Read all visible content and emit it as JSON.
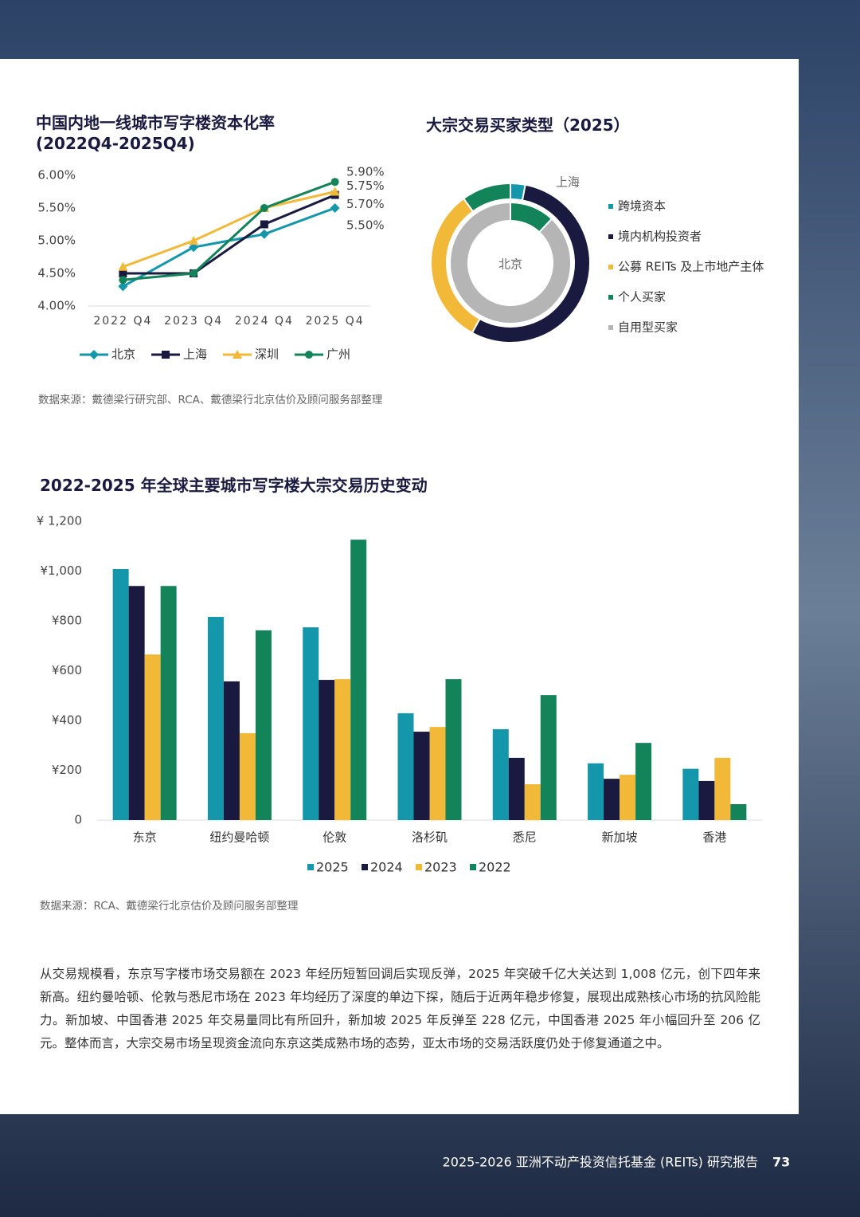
{
  "chart_data": [
    {
      "type": "line",
      "title": "中国内地一线城市写字楼资本化率\n(2022Q4-2025Q4)",
      "categories": [
        "2022 Q4",
        "2023 Q4",
        "2024 Q4",
        "2025 Q4"
      ],
      "ylim": [
        4,
        6
      ],
      "yticks": [
        {
          "value": 4,
          "label": "4.00%"
        },
        {
          "value": 4.5,
          "label": "4.50%"
        },
        {
          "value": 5,
          "label": "5.00%"
        },
        {
          "value": 5.5,
          "label": "5.50%"
        },
        {
          "value": 6,
          "label": "6.00%"
        }
      ],
      "series": [
        {
          "name": "北京",
          "color": "#1496ab",
          "marker": "diamond",
          "values": [
            4.3,
            4.9,
            5.1,
            5.5
          ],
          "value_labels": [
            null,
            null,
            null,
            "5.50%"
          ]
        },
        {
          "name": "上海",
          "color": "#1a1a40",
          "marker": "square",
          "values": [
            4.5,
            4.5,
            5.25,
            5.7
          ],
          "value_labels": [
            null,
            null,
            null,
            "5.70%"
          ]
        },
        {
          "name": "深圳",
          "color": "#f2b838",
          "marker": "triangle",
          "values": [
            4.6,
            5.0,
            5.5,
            5.75
          ],
          "value_labels": [
            null,
            null,
            null,
            "5.75%"
          ]
        },
        {
          "name": "广州",
          "color": "#138359",
          "marker": "circle",
          "values": [
            4.4,
            4.5,
            5.5,
            5.9
          ],
          "value_labels": [
            null,
            null,
            null,
            "5.90%"
          ]
        }
      ],
      "source": "数据来源：戴德梁行研究部、RCA、戴德梁行北京估价及顾问服务部整理"
    },
    {
      "type": "donut",
      "title": "大宗交易买家类型（2025）",
      "categories": [
        "跨境资本",
        "境内机构投资者",
        "公募 REITs 及上市地产主体",
        "个人买家",
        "自用型买家"
      ],
      "colors": [
        "#1496ab",
        "#1a1a40",
        "#f2b838",
        "#138359",
        "#b5b5b5"
      ],
      "series": [
        {
          "name": "上海",
          "values": [
            3,
            55,
            32,
            10,
            0
          ]
        },
        {
          "name": "北京",
          "values": [
            0,
            0,
            0,
            12,
            88
          ]
        }
      ]
    },
    {
      "type": "bar",
      "title": "2022-2025 年全球主要城市写字楼大宗交易历史变动",
      "categories": [
        "东京",
        "纽约曼哈顿",
        "伦敦",
        "洛杉矶",
        "悉尼",
        "新加坡",
        "香港"
      ],
      "ylim": [
        0,
        1200
      ],
      "yticks": [
        0,
        {
          "value": 200,
          "label": "¥200"
        },
        {
          "value": 400,
          "label": "¥400"
        },
        {
          "value": 600,
          "label": "¥600"
        },
        {
          "value": 800,
          "label": "¥800"
        },
        {
          "value": 1000,
          "label": "¥1,000"
        },
        {
          "value": 1200,
          "label": "¥ 1,200"
        }
      ],
      "series": [
        {
          "name": "2025",
          "color": "#1496ab",
          "values": [
            1008,
            816,
            774,
            429,
            365,
            228,
            206
          ]
        },
        {
          "name": "2024",
          "color": "#1a1a40",
          "values": [
            940,
            557,
            563,
            355,
            250,
            166,
            157
          ]
        },
        {
          "name": "2023",
          "color": "#f2b838",
          "values": [
            665,
            349,
            566,
            374,
            144,
            182,
            250
          ]
        },
        {
          "name": "2022",
          "color": "#138359",
          "values": [
            940,
            762,
            1126,
            566,
            502,
            310,
            64
          ]
        }
      ],
      "source": "数据来源：RCA、戴德梁行北京估价及顾问服务部整理"
    }
  ],
  "paragraph": "从交易规模看，东京写字楼市场交易额在 2023 年经历短暂回调后实现反弹，2025 年突破千亿大关达到 1,008 亿元，创下四年来新高。纽约曼哈顿、伦敦与悉尼市场在 2023 年均经历了深度的单边下探，随后于近两年稳步修复，展现出成熟核心市场的抗风险能力。新加坡、中国香港 2025 年交易量同比有所回升，新加坡 2025 年反弹至 228 亿元，中国香港 2025 年小幅回升至 206 亿元。整体而言，大宗交易市场呈现资金流向东京这类成熟市场的态势，亚太市场的交易活跃度仍处于修复通道之中。",
  "footer": {
    "title": "2025-2026 亚洲不动产投资信托基金 (REITs) 研究报告",
    "page": "73"
  }
}
